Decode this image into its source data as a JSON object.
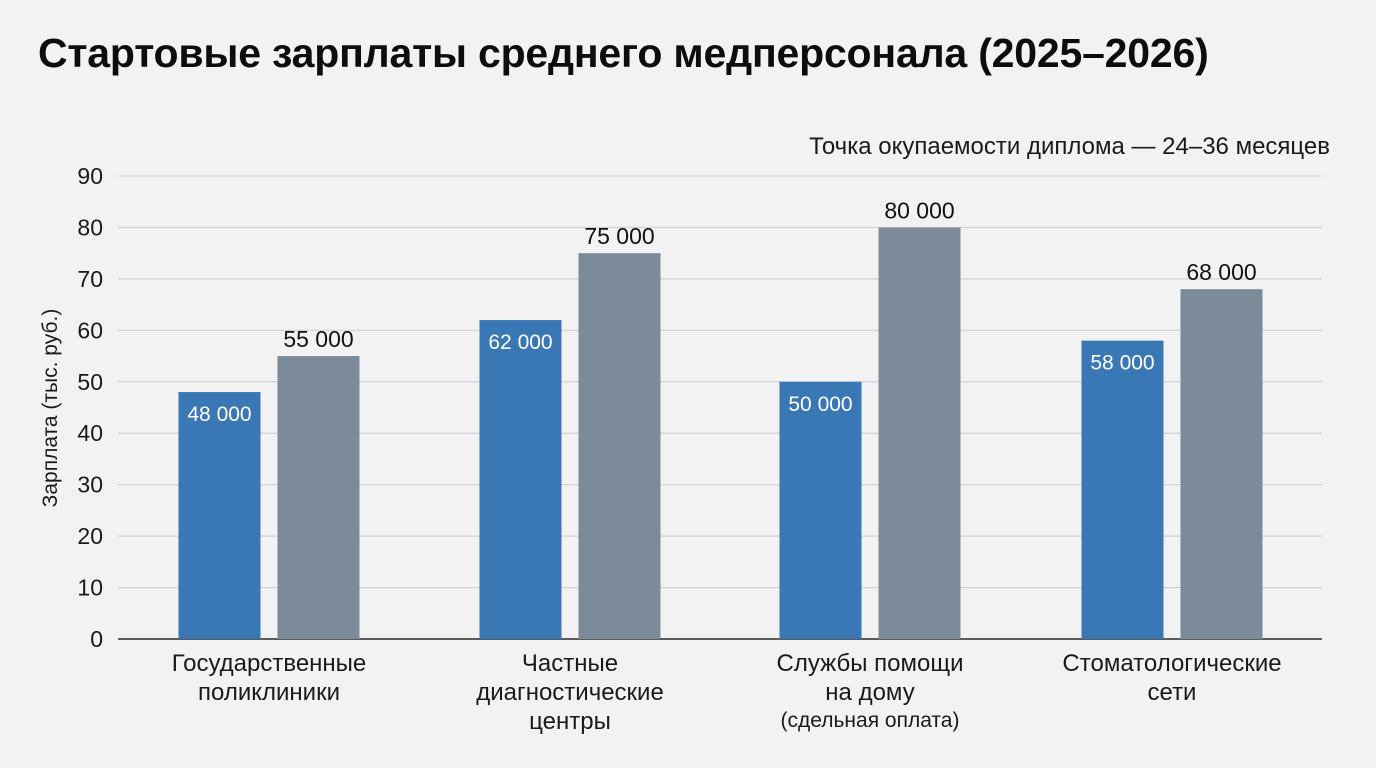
{
  "chart_data": {
    "type": "bar",
    "title": "Стартовые зарплаты среднего медперсонала (2025–2026)",
    "annotation": "Точка окупаемости диплома — 24–36 месяцев",
    "ylabel": "Зарплата (тыс. руб.)",
    "ylim": [
      0,
      90
    ],
    "yticks": [
      0,
      10,
      20,
      30,
      40,
      50,
      60,
      70,
      80,
      90
    ],
    "grid": true,
    "categories": [
      {
        "lines": [
          "Государственные",
          "поликлиники"
        ],
        "sub": ""
      },
      {
        "lines": [
          "Частные",
          "диагностические",
          "центры"
        ],
        "sub": ""
      },
      {
        "lines": [
          "Службы помощи",
          "на дому"
        ],
        "sub": "(сдельная оплата)"
      },
      {
        "lines": [
          "Стоматологические",
          "сети"
        ],
        "sub": ""
      }
    ],
    "series": [
      {
        "color": "#3a78b5",
        "values": [
          48,
          62,
          50,
          58
        ],
        "labels": [
          "48 000",
          "62 000",
          "50 000",
          "58 000"
        ],
        "label_position": "inside"
      },
      {
        "color": "#7c8b99",
        "values": [
          55,
          75,
          80,
          68
        ],
        "labels": [
          "55 000",
          "75 000",
          "80 000",
          "68 000"
        ],
        "label_position": "above"
      }
    ]
  }
}
